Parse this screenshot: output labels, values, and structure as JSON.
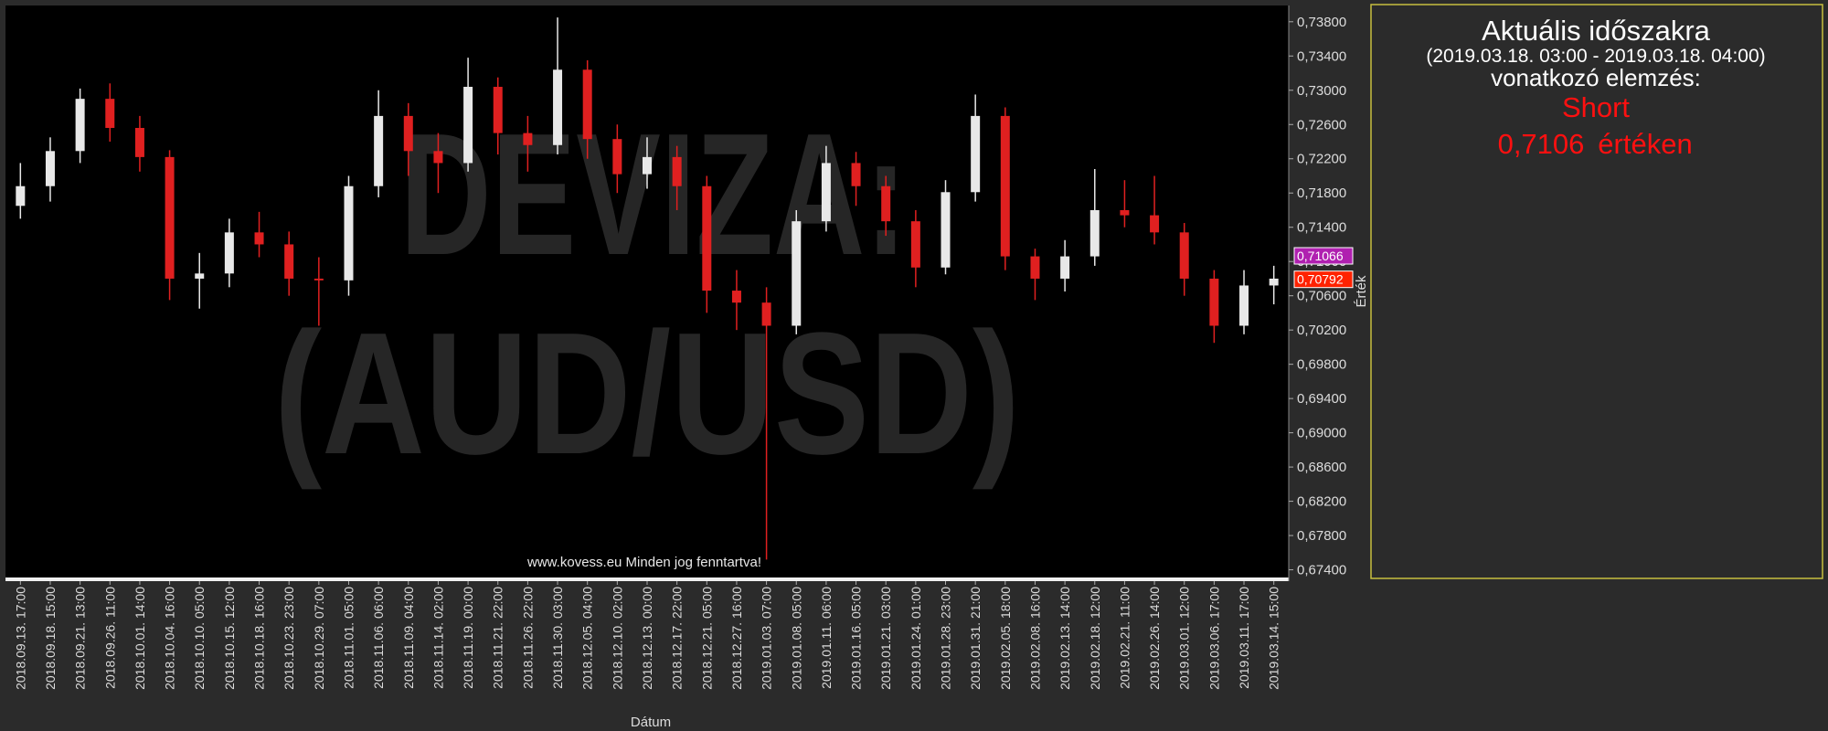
{
  "chart_data": {
    "type": "candlestick",
    "watermark": [
      "DEVIZA:",
      "(AUD/USD)"
    ],
    "footer": "www.kovess.eu Minden jog fenntartva!",
    "x_label": "Dátum",
    "y_label": "Érték",
    "categories": [
      "2018.09.13. 17:00",
      "2018.09.18. 15:00",
      "2018.09.21. 13:00",
      "2018.09.26. 11:00",
      "2018.10.01. 14:00",
      "2018.10.04. 16:00",
      "2018.10.10. 05:00",
      "2018.10.15. 12:00",
      "2018.10.18. 16:00",
      "2018.10.23. 23:00",
      "2018.10.29. 07:00",
      "2018.11.01. 05:00",
      "2018.11.06. 06:00",
      "2018.11.09. 04:00",
      "2018.11.14. 02:00",
      "2018.11.19. 00:00",
      "2018.11.21. 22:00",
      "2018.11.26. 22:00",
      "2018.11.30. 03:00",
      "2018.12.05. 04:00",
      "2018.12.10. 02:00",
      "2018.12.13. 00:00",
      "2018.12.17. 22:00",
      "2018.12.21. 05:00",
      "2018.12.27. 16:00",
      "2019.01.03. 07:00",
      "2019.01.08. 05:00",
      "2019.01.11. 06:00",
      "2019.01.16. 05:00",
      "2019.01.21. 03:00",
      "2019.01.24. 01:00",
      "2019.01.28. 23:00",
      "2019.01.31. 21:00",
      "2019.02.05. 18:00",
      "2019.02.08. 16:00",
      "2019.02.13. 14:00",
      "2019.02.18. 12:00",
      "2019.02.21. 11:00",
      "2019.02.26. 14:00",
      "2019.03.01. 12:00",
      "2019.03.06. 17:00",
      "2019.03.11. 17:00",
      "2019.03.14. 15:00"
    ],
    "open": [
      0.7165,
      0.7188,
      0.7229,
      0.729,
      0.7256,
      0.7222,
      0.708,
      0.7086,
      0.7134,
      0.712,
      0.708,
      0.7078,
      0.7188,
      0.727,
      0.7229,
      0.7215,
      0.7304,
      0.725,
      0.7236,
      0.7324,
      0.7243,
      0.7202,
      0.7222,
      0.7188,
      0.7066,
      0.7052,
      0.7025,
      0.7147,
      0.7215,
      0.7188,
      0.7147,
      0.7093,
      0.7181,
      0.727,
      0.7106,
      0.708,
      0.7106,
      0.716,
      0.7154,
      0.7134,
      0.708,
      0.7025,
      0.7072
    ],
    "high": [
      0.7215,
      0.7245,
      0.7302,
      0.7308,
      0.727,
      0.723,
      0.711,
      0.715,
      0.7158,
      0.7135,
      0.7105,
      0.72,
      0.73,
      0.7285,
      0.725,
      0.7338,
      0.7315,
      0.727,
      0.7385,
      0.7335,
      0.726,
      0.7245,
      0.7235,
      0.72,
      0.709,
      0.707,
      0.716,
      0.7235,
      0.7228,
      0.72,
      0.716,
      0.7195,
      0.7295,
      0.728,
      0.7115,
      0.7125,
      0.7208,
      0.7195,
      0.72,
      0.7145,
      0.709,
      0.709,
      0.7095
    ],
    "low": [
      0.715,
      0.717,
      0.7215,
      0.724,
      0.7205,
      0.7055,
      0.7045,
      0.707,
      0.7105,
      0.706,
      0.7025,
      0.706,
      0.7175,
      0.72,
      0.718,
      0.7205,
      0.7225,
      0.7205,
      0.7225,
      0.722,
      0.718,
      0.7185,
      0.716,
      0.704,
      0.702,
      0.6752,
      0.7015,
      0.7135,
      0.7165,
      0.713,
      0.707,
      0.7085,
      0.717,
      0.709,
      0.7055,
      0.7065,
      0.7095,
      0.714,
      0.712,
      0.706,
      0.7005,
      0.7015,
      0.705
    ],
    "close": [
      0.7188,
      0.7229,
      0.729,
      0.7256,
      0.7222,
      0.708,
      0.7086,
      0.7134,
      0.712,
      0.708,
      0.7078,
      0.7188,
      0.727,
      0.7229,
      0.7215,
      0.7304,
      0.725,
      0.7236,
      0.7324,
      0.7243,
      0.7202,
      0.7222,
      0.7188,
      0.7066,
      0.7052,
      0.7025,
      0.7147,
      0.7215,
      0.7188,
      0.7147,
      0.7093,
      0.7181,
      0.727,
      0.7106,
      0.708,
      0.7106,
      0.716,
      0.7154,
      0.7134,
      0.708,
      0.7025,
      0.7072,
      0.708
    ],
    "up_color": "#e8e8e8",
    "down_color": "#e02020",
    "ylim": [
      0.6731,
      0.7399
    ],
    "yticks": [
      {
        "value": 0.674,
        "label": "0,67400"
      },
      {
        "value": 0.678,
        "label": "0,67800"
      },
      {
        "value": 0.682,
        "label": "0,68200"
      },
      {
        "value": 0.686,
        "label": "0,68600"
      },
      {
        "value": 0.69,
        "label": "0,69000"
      },
      {
        "value": 0.694,
        "label": "0,69400"
      },
      {
        "value": 0.698,
        "label": "0,69800"
      },
      {
        "value": 0.702,
        "label": "0,70200"
      },
      {
        "value": 0.706,
        "label": "0,70600"
      },
      {
        "value": 0.71,
        "label": "0,71000"
      },
      {
        "value": 0.714,
        "label": "0,71400"
      },
      {
        "value": 0.718,
        "label": "0,71800"
      },
      {
        "value": 0.722,
        "label": "0,72200"
      },
      {
        "value": 0.726,
        "label": "0,72600"
      },
      {
        "value": 0.73,
        "label": "0,73000"
      },
      {
        "value": 0.734,
        "label": "0,73400"
      },
      {
        "value": 0.738,
        "label": "0,73800"
      }
    ],
    "price_tags": [
      {
        "value": 0.71066,
        "label": "0,71066",
        "color": "#b020b0"
      },
      {
        "value": 0.70792,
        "label": "0,70792",
        "color": "#ff2200"
      }
    ]
  },
  "panel": {
    "heading": "Aktuális időszakra",
    "period": "(2019.03.18. 03:00 - 2019.03.18. 04:00)",
    "subheading": "vonatkozó elemzés:",
    "signal": "Short",
    "price": "0,7106",
    "price_suffix": "értéken"
  }
}
